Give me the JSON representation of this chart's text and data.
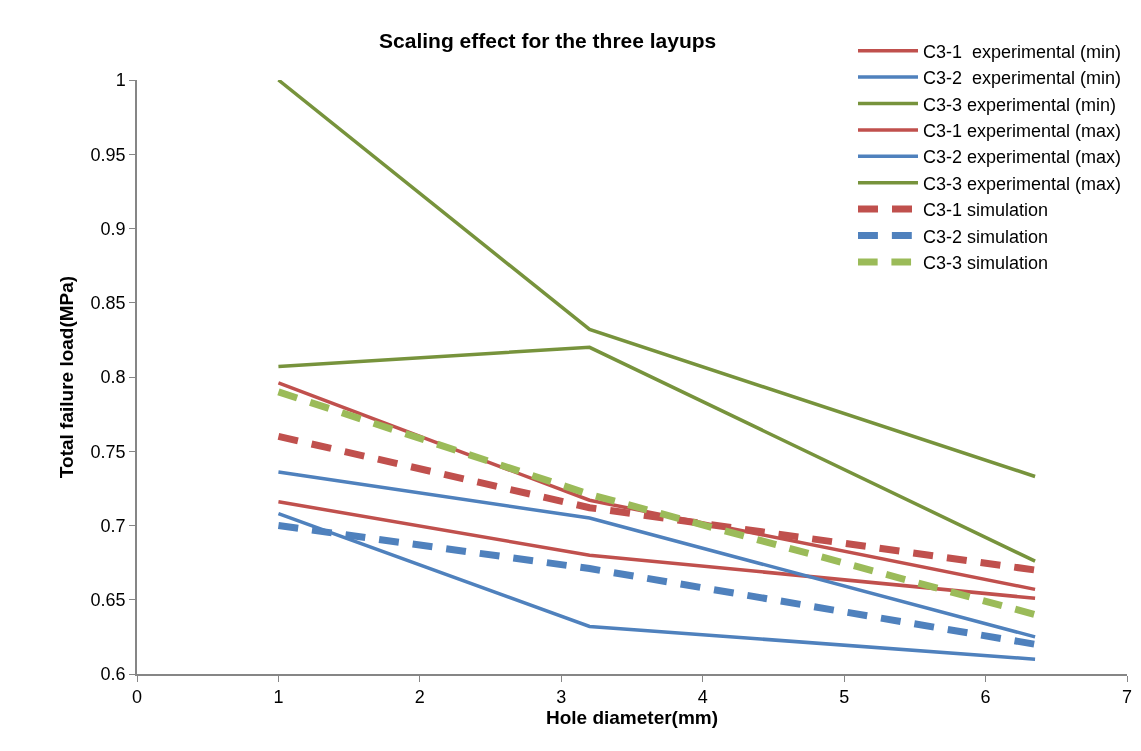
{
  "chart_data": {
    "type": "line",
    "title": "Scaling effect for the three layups",
    "xlabel": "Hole diameter(mm)",
    "ylabel": "Total failure load(MPa)",
    "x": [
      1,
      3.2,
      6.35
    ],
    "series": [
      {
        "name": "C3-1  experimental (min)",
        "color": "#c0504d",
        "line_style": "solid",
        "values": [
          0.716,
          0.68,
          0.651
        ]
      },
      {
        "name": "C3-2  experimental (min)",
        "color": "#4f81bd",
        "line_style": "solid",
        "values": [
          0.708,
          0.632,
          0.61
        ]
      },
      {
        "name": "C3-3 experimental (min)",
        "color": "#77933c",
        "line_style": "solid",
        "values": [
          0.807,
          0.82,
          0.676
        ]
      },
      {
        "name": "C3-1 experimental (max)",
        "color": "#c0504d",
        "line_style": "solid",
        "values": [
          0.796,
          0.717,
          0.657
        ]
      },
      {
        "name": "C3-2 experimental (max)",
        "color": "#4f81bd",
        "line_style": "solid",
        "values": [
          0.736,
          0.705,
          0.625
        ]
      },
      {
        "name": "C3-3 experimental (max)",
        "color": "#77933c",
        "line_style": "solid",
        "values": [
          1.0,
          0.832,
          0.733
        ]
      },
      {
        "name": "C3-1 simulation",
        "color": "#c0504d",
        "line_style": "dashed",
        "values": [
          0.76,
          0.712,
          0.67
        ]
      },
      {
        "name": "C3-2 simulation",
        "color": "#4f81bd",
        "line_style": "dashed",
        "values": [
          0.7,
          0.671,
          0.62
        ]
      },
      {
        "name": "C3-3 simulation",
        "color": "#9bbb59",
        "line_style": "dashed",
        "values": [
          0.79,
          0.721,
          0.64
        ]
      }
    ],
    "xlim": [
      0,
      7
    ],
    "xticks": [
      0,
      1,
      2,
      3,
      4,
      5,
      6,
      7
    ],
    "ylim": [
      0.6,
      1
    ],
    "yticks": [
      0.6,
      0.65,
      0.7,
      0.75,
      0.8,
      0.85,
      0.9,
      0.95,
      1
    ],
    "grid": false,
    "legend": "top right",
    "marker": "none"
  }
}
